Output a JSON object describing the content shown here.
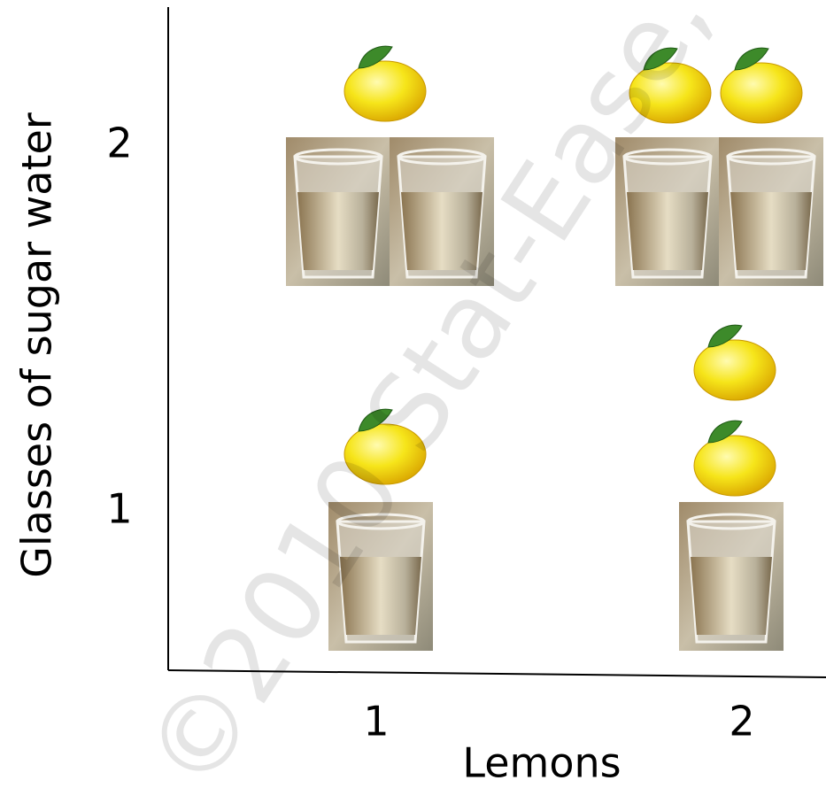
{
  "watermark": "©2010 Stat-Ease, ",
  "x_axis": {
    "label": "Lemons",
    "ticks": [
      1,
      2
    ]
  },
  "y_axis": {
    "label": "Glasses of sugar water",
    "ticks": [
      1,
      2
    ]
  },
  "runs": [
    {
      "lemons": 1,
      "glasses": 1
    },
    {
      "lemons": 2,
      "glasses": 1
    },
    {
      "lemons": 1,
      "glasses": 2
    },
    {
      "lemons": 2,
      "glasses": 2
    }
  ]
}
